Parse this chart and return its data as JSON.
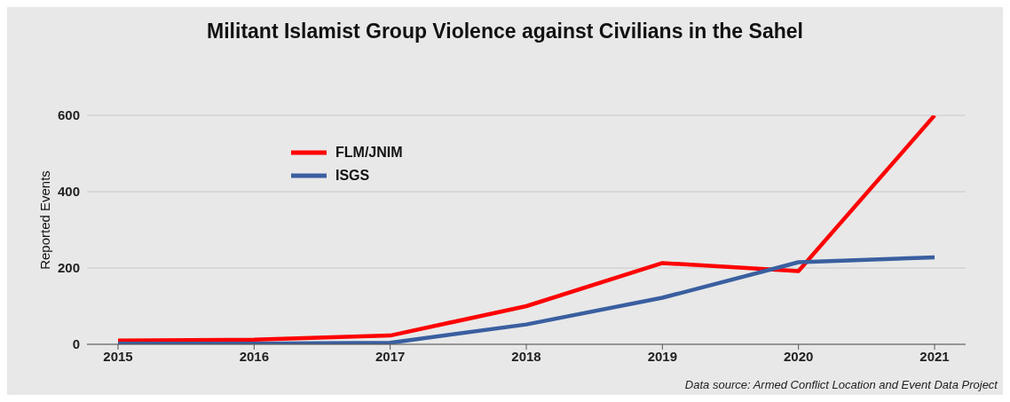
{
  "chart_data": {
    "type": "line",
    "title": "Militant Islamist Group Violence against Civilians in the Sahel",
    "ylabel": "Reported Events",
    "categories": [
      "2015",
      "2016",
      "2017",
      "2018",
      "2019",
      "2020",
      "2021"
    ],
    "series": [
      {
        "name": "FLM/JNIM",
        "color": "#ff0000",
        "values": [
          10,
          12,
          23,
          100,
          213,
          192,
          600
        ]
      },
      {
        "name": "ISGS",
        "color": "#3a5fa0",
        "values": [
          2,
          2,
          4,
          52,
          122,
          215,
          228
        ]
      }
    ],
    "ylim": [
      0,
      600
    ],
    "yticks": [
      0,
      200,
      400,
      600
    ],
    "grid": "y",
    "legend": "top left",
    "marker": "none",
    "line_style": "solid",
    "annotations": [
      "Data source: Armed Conflict Location and Event Data Project"
    ]
  }
}
